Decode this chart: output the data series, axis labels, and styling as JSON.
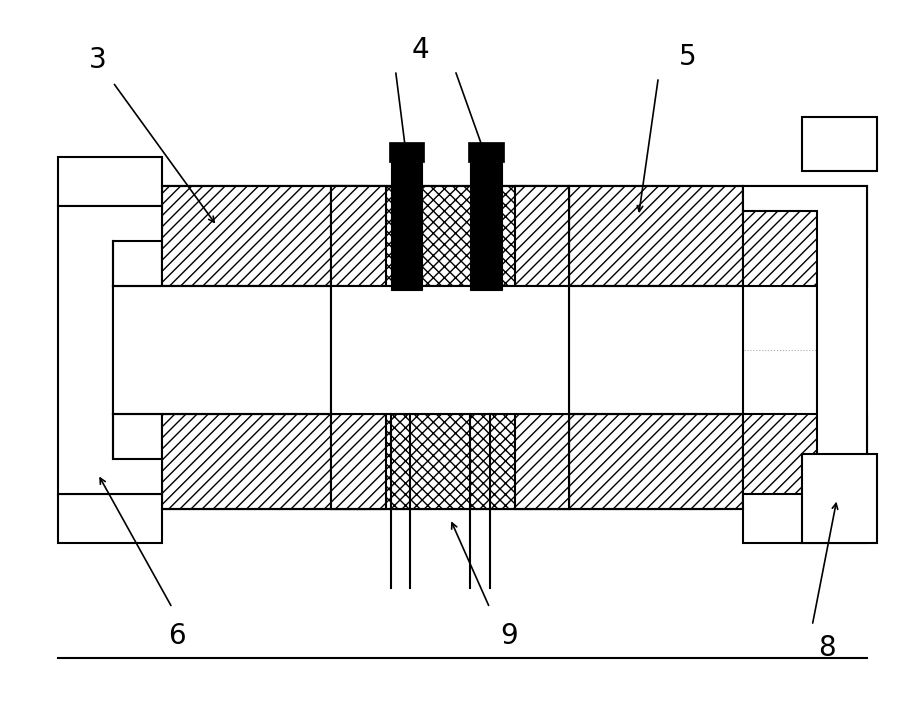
{
  "bg_color": "#ffffff",
  "line_color": "#000000",
  "label_fontsize": 20,
  "lw": 1.5
}
